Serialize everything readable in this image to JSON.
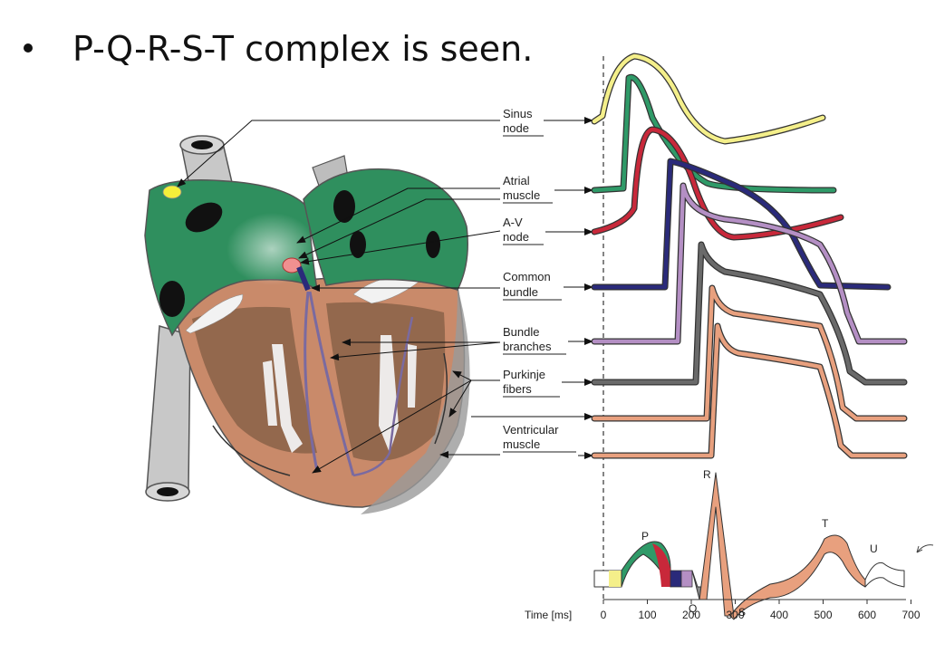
{
  "bullet": {
    "text": "P-Q-R-S-T complex is seen."
  },
  "labels": [
    {
      "id": "sinus",
      "lines": [
        "Sinus",
        "node"
      ]
    },
    {
      "id": "atrial",
      "lines": [
        "Atrial",
        "muscle"
      ]
    },
    {
      "id": "av",
      "lines": [
        "A-V",
        "node"
      ]
    },
    {
      "id": "common",
      "lines": [
        "Common",
        "bundle"
      ]
    },
    {
      "id": "branches",
      "lines": [
        "Bundle",
        "branches"
      ]
    },
    {
      "id": "purkinje",
      "lines": [
        "Purkinje",
        "fibers"
      ]
    },
    {
      "id": "ventricular",
      "lines": [
        "Ventricular",
        "muscle"
      ]
    }
  ],
  "ecg": {
    "waves": [
      "P",
      "Q",
      "R",
      "S",
      "T",
      "U"
    ]
  },
  "axis": {
    "label": "Time [ms]",
    "ticks": [
      "0",
      "100",
      "200",
      "300",
      "400",
      "500",
      "600",
      "700"
    ]
  },
  "colors": {
    "sinus": "#f4ef8a",
    "atrial": "#2f9a68",
    "av": "#c8283a",
    "common": "#2a2a7a",
    "branches": "#b48fc4",
    "purkinje": "#6a6a6a",
    "ventricular": "#e8a07e",
    "heart_green": "#2f8f5e",
    "heart_tan": "#c98a6a"
  }
}
